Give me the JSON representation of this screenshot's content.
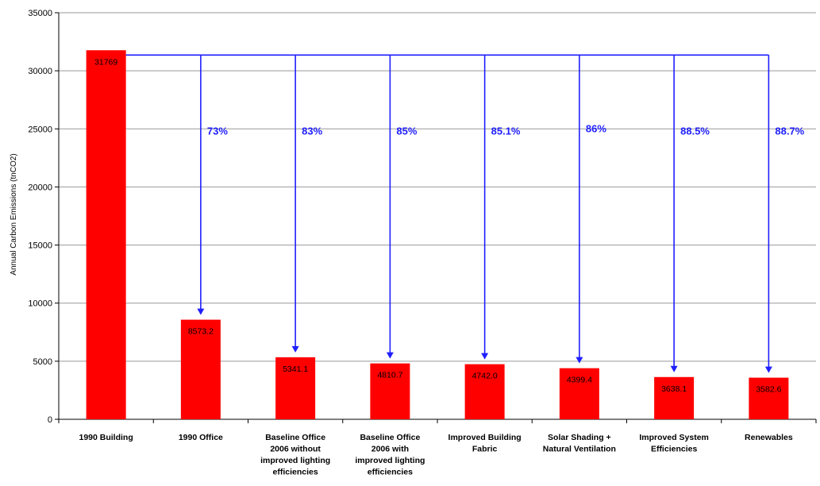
{
  "chart_data": {
    "type": "bar",
    "title": "",
    "xlabel": "",
    "ylabel": "Annual Carbon Emissions (tnCO2)",
    "ylim": [
      0,
      35000
    ],
    "yticks": [
      "0",
      "5000",
      "10000",
      "15000",
      "20000",
      "25000",
      "30000",
      "35000"
    ],
    "grid": true,
    "categories": [
      [
        "1990 Building"
      ],
      [
        "1990 Office"
      ],
      [
        "Baseline Office",
        "2006 without",
        "improved lighting",
        "efficiencies"
      ],
      [
        "Baseline Office",
        "2006 with",
        "improved lighting",
        "efficiencies"
      ],
      [
        "Improved Building",
        "Fabric"
      ],
      [
        "Solar Shading +",
        "Natural Ventilation"
      ],
      [
        "Improved System",
        "Efficiencies"
      ],
      [
        "Renewables"
      ]
    ],
    "values": [
      31769,
      8573.2,
      5341.1,
      4810.7,
      4742.0,
      4399.4,
      3638.1,
      3582.6
    ],
    "data_labels": [
      "31769",
      "8573.2",
      "5341.1",
      "4810.7",
      "4742.0",
      "4399.4",
      "3638.1",
      "3582.6"
    ],
    "reduction_labels": [
      "73%",
      "83%",
      "85%",
      "85.1%",
      "86%",
      "88.5%",
      "88.7%"
    ],
    "bar_color": "#ff0000",
    "arrow_color": "#1f1fff"
  }
}
